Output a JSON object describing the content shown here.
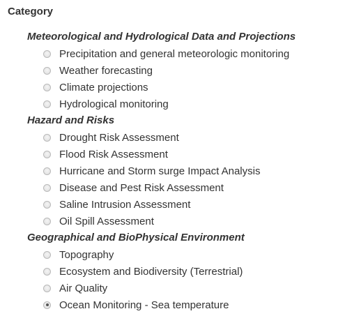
{
  "title": "Category",
  "groups": [
    {
      "heading": "Meteorological and Hydrological Data and Projections",
      "options": [
        {
          "label": "Precipitation and general meteorologic monitoring",
          "checked": false
        },
        {
          "label": "Weather forecasting",
          "checked": false
        },
        {
          "label": "Climate projections",
          "checked": false
        },
        {
          "label": "Hydrological monitoring",
          "checked": false
        }
      ]
    },
    {
      "heading": "Hazard and Risks",
      "options": [
        {
          "label": "Drought Risk Assessment",
          "checked": false
        },
        {
          "label": "Flood Risk Assessment",
          "checked": false
        },
        {
          "label": "Hurricane and Storm surge Impact Analysis",
          "checked": false
        },
        {
          "label": "Disease and Pest Risk Assessment",
          "checked": false
        },
        {
          "label": "Saline Intrusion Assessment",
          "checked": false
        },
        {
          "label": "Oil Spill Assessment",
          "checked": false
        }
      ]
    },
    {
      "heading": "Geographical and BioPhysical Environment",
      "options": [
        {
          "label": "Topography",
          "checked": false
        },
        {
          "label": "Ecosystem and Biodiversity (Terrestrial)",
          "checked": false
        },
        {
          "label": "Air Quality",
          "checked": false
        },
        {
          "label": "Ocean Monitoring - Sea temperature",
          "checked": true
        }
      ]
    }
  ]
}
